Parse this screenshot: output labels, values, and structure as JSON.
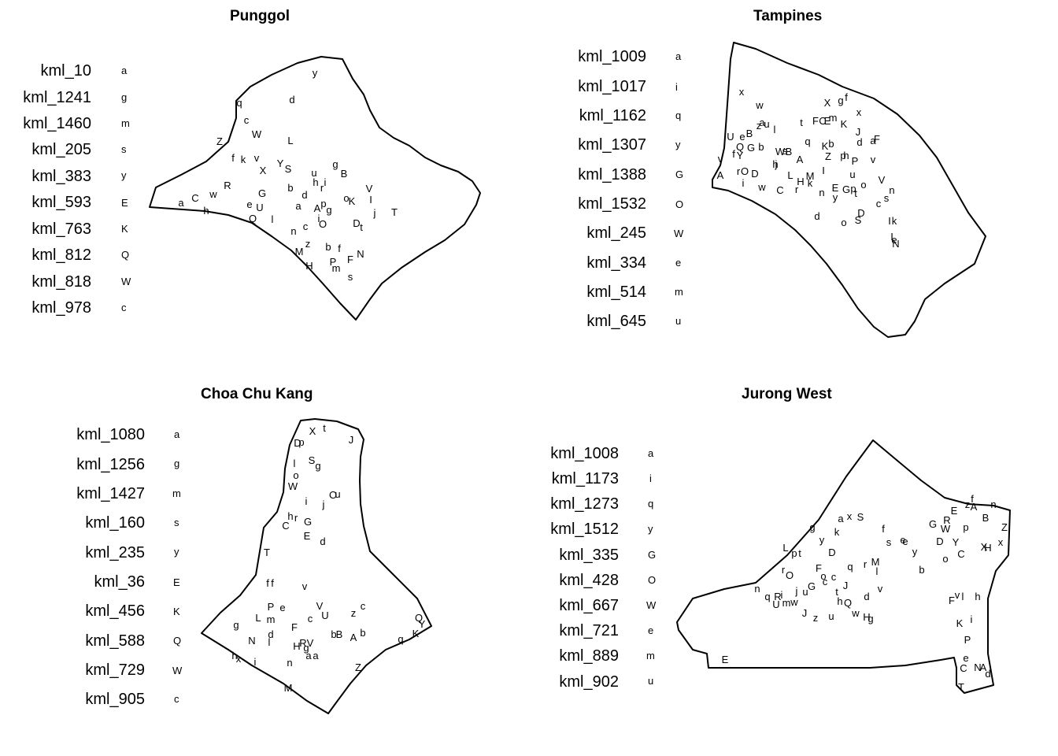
{
  "panels": [
    {
      "title": "Punggol",
      "legend": [
        {
          "name": "kml_10",
          "code": "a"
        },
        {
          "name": "kml_1241",
          "code": "g"
        },
        {
          "name": "kml_1460",
          "code": "m"
        },
        {
          "name": "kml_205",
          "code": "s"
        },
        {
          "name": "kml_383",
          "code": "y"
        },
        {
          "name": "kml_593",
          "code": "E"
        },
        {
          "name": "kml_763",
          "code": "K"
        },
        {
          "name": "kml_812",
          "code": "Q"
        },
        {
          "name": "kml_818",
          "code": "W"
        },
        {
          "name": "kml_978",
          "code": "c"
        }
      ],
      "labels": [
        "y",
        "d",
        "q",
        "c",
        "W",
        "L",
        "Z",
        "f",
        "k",
        "v",
        "Y",
        "S",
        "X",
        "u",
        "h",
        "i",
        "g",
        "B",
        "R",
        "G",
        "b",
        "d",
        "r",
        "V",
        "e",
        "a",
        "p",
        "o",
        "K",
        "I",
        "j",
        "T",
        "Q",
        "U",
        "l",
        "C",
        "w",
        "a",
        "h",
        "i",
        "O",
        "A",
        "g",
        "c",
        "D",
        "t",
        "n",
        "M",
        "z",
        "b",
        "f",
        "N",
        "F",
        "P",
        "m",
        "H",
        "s"
      ]
    },
    {
      "title": "Tampines",
      "legend": [
        {
          "name": "kml_1009",
          "code": "a"
        },
        {
          "name": "kml_1017",
          "code": "i"
        },
        {
          "name": "kml_1162",
          "code": "q"
        },
        {
          "name": "kml_1307",
          "code": "y"
        },
        {
          "name": "kml_1388",
          "code": "G"
        },
        {
          "name": "kml_1532",
          "code": "O"
        },
        {
          "name": "kml_245",
          "code": "W"
        },
        {
          "name": "kml_334",
          "code": "e"
        },
        {
          "name": "kml_514",
          "code": "m"
        },
        {
          "name": "kml_645",
          "code": "u"
        }
      ],
      "labels": [
        "x",
        "w",
        "X",
        "g",
        "f",
        "x",
        "a",
        "u",
        "l",
        "t",
        "F",
        "C",
        "E",
        "m",
        "K",
        "J",
        "U",
        "e",
        "B",
        "z",
        "q",
        "b",
        "a",
        "F",
        "Q",
        "G",
        "b",
        "W",
        "B",
        "K",
        "d",
        "f",
        "Y",
        "v",
        "h",
        "j",
        "s",
        "A",
        "Z",
        "p",
        "h",
        "P",
        "v",
        "A",
        "r",
        "O",
        "D",
        "i",
        "L",
        "M",
        "I",
        "u",
        "k",
        "H",
        "w",
        "C",
        "r",
        "E",
        "G",
        "p",
        "o",
        "V",
        "y",
        "t",
        "n",
        "n",
        "c",
        "s",
        "d",
        "o",
        "S",
        "D",
        "I",
        "k",
        "I",
        "e",
        "N"
      ]
    },
    {
      "title": "Choa Chu Kang",
      "legend": [
        {
          "name": "kml_1080",
          "code": "a"
        },
        {
          "name": "kml_1256",
          "code": "g"
        },
        {
          "name": "kml_1427",
          "code": "m"
        },
        {
          "name": "kml_160",
          "code": "s"
        },
        {
          "name": "kml_235",
          "code": "y"
        },
        {
          "name": "kml_36",
          "code": "E"
        },
        {
          "name": "kml_456",
          "code": "K"
        },
        {
          "name": "kml_588",
          "code": "Q"
        },
        {
          "name": "kml_729",
          "code": "W"
        },
        {
          "name": "kml_905",
          "code": "c"
        }
      ],
      "labels": [
        "X",
        "t",
        "J",
        "D",
        "p",
        "S",
        "g",
        "l",
        "o",
        "W",
        "O",
        "u",
        "i",
        "j",
        "h",
        "r",
        "G",
        "C",
        "E",
        "d",
        "T",
        "f",
        "f",
        "v",
        "P",
        "e",
        "V",
        "z",
        "c",
        "L",
        "m",
        "U",
        "c",
        "Q",
        "g",
        "F",
        "Y",
        "N",
        "d",
        "l",
        "b",
        "B",
        "A",
        "b",
        "q",
        "K",
        "R",
        "V",
        "H",
        "g",
        "a",
        "a",
        "h",
        "x",
        "i",
        "n",
        "Z",
        "M"
      ]
    },
    {
      "title": "Jurong West",
      "legend": [
        {
          "name": "kml_1008",
          "code": "a"
        },
        {
          "name": "kml_1173",
          "code": "i"
        },
        {
          "name": "kml_1273",
          "code": "q"
        },
        {
          "name": "kml_1512",
          "code": "y"
        },
        {
          "name": "kml_335",
          "code": "G"
        },
        {
          "name": "kml_428",
          "code": "O"
        },
        {
          "name": "kml_667",
          "code": "W"
        },
        {
          "name": "kml_721",
          "code": "e"
        },
        {
          "name": "kml_889",
          "code": "m"
        },
        {
          "name": "kml_902",
          "code": "u"
        }
      ],
      "labels": [
        "f",
        "z",
        "A",
        "n",
        "E",
        "B",
        "G",
        "R",
        "W",
        "p",
        "Z",
        "g",
        "a",
        "x",
        "S",
        "k",
        "f",
        "y",
        "s",
        "e",
        "e",
        "y",
        "D",
        "Y",
        "X",
        "H",
        "x",
        "L",
        "p",
        "t",
        "D",
        "o",
        "C",
        "b",
        "r",
        "O",
        "F",
        "q",
        "r",
        "M",
        "l",
        "o",
        "c",
        "c",
        "J",
        "G",
        "v",
        "n",
        "q",
        "R",
        "i",
        "j",
        "u",
        "t",
        "d",
        "U",
        "m",
        "w",
        "h",
        "Q",
        "F",
        "v",
        "l",
        "h",
        "J",
        "z",
        "u",
        "w",
        "H",
        "g",
        "i",
        "K",
        "P",
        "E",
        "e",
        "C",
        "N",
        "A",
        "d",
        "T"
      ]
    }
  ]
}
